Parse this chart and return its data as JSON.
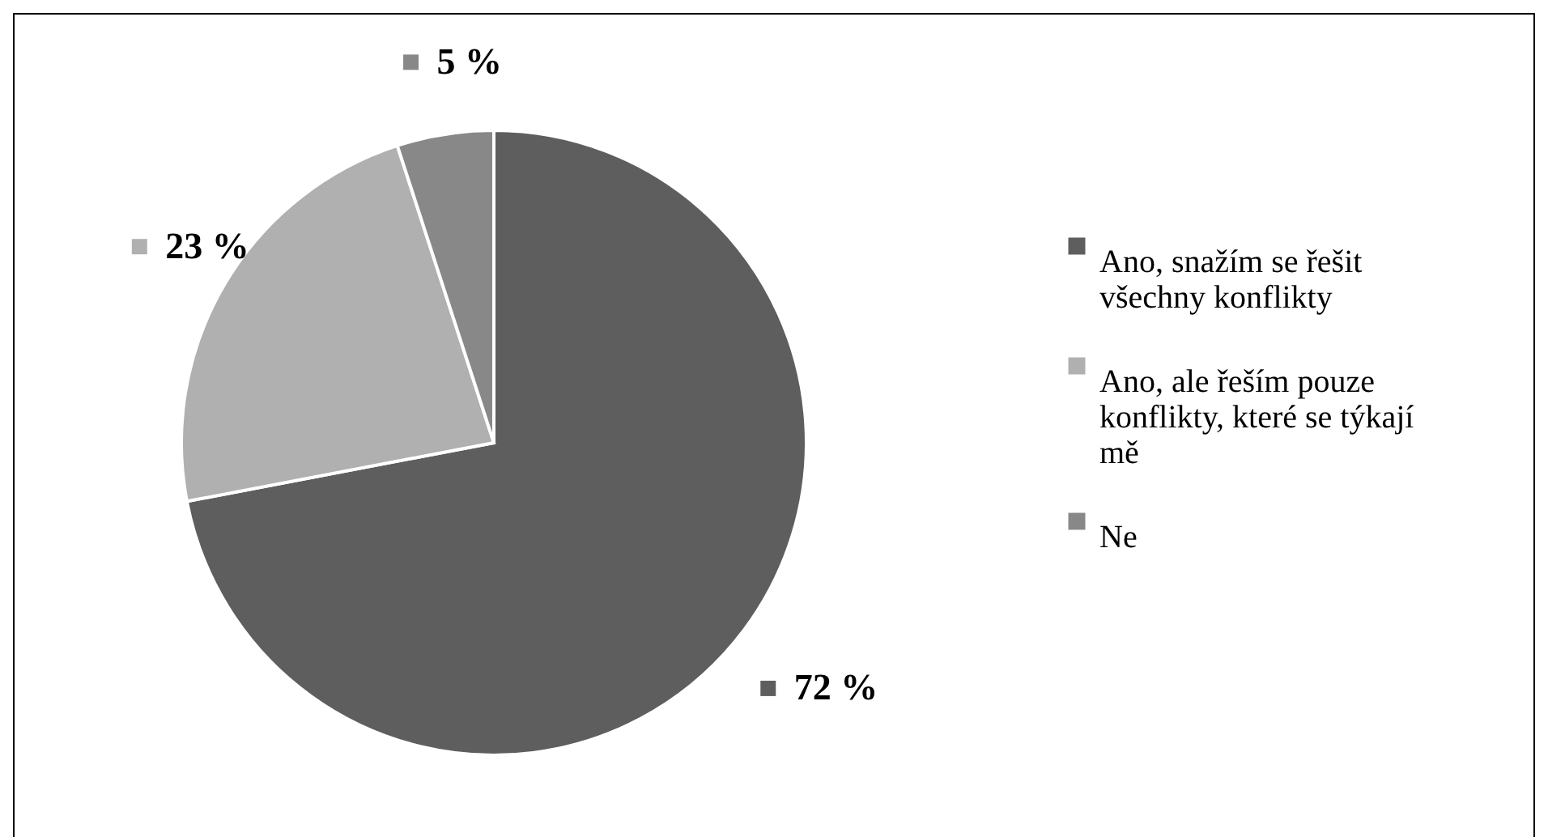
{
  "chart_data": {
    "type": "pie",
    "categories": [
      "Ano, snažím se řešit všechny konflikty",
      "Ano, ale řeším pouze konflikty, které se týkají mě",
      "Ne"
    ],
    "values": [
      72,
      23,
      5
    ],
    "colors": [
      "#5e5e5e",
      "#b0b0b0",
      "#888888"
    ],
    "value_labels": [
      "72 %",
      "23 %",
      "5 %"
    ],
    "legend": "right"
  }
}
